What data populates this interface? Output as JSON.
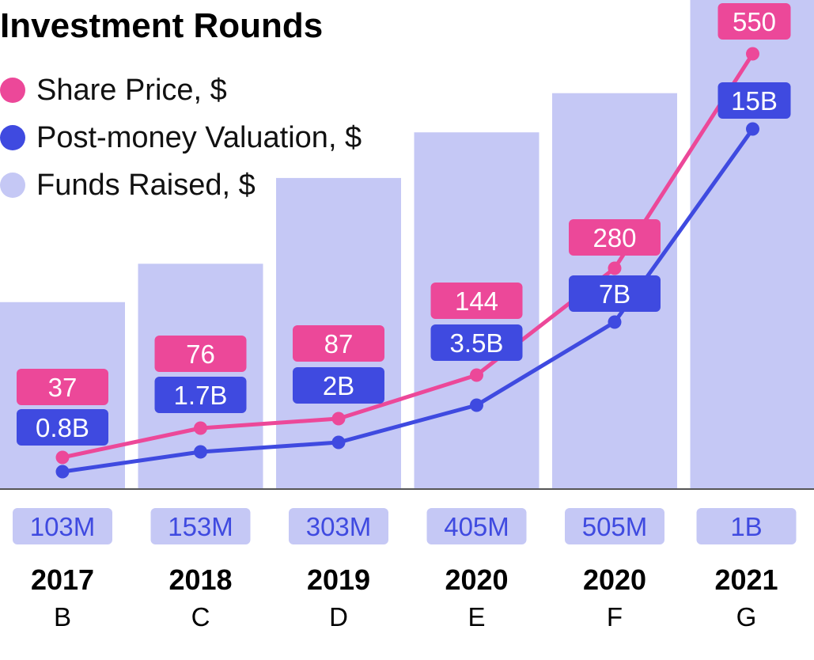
{
  "chart_data": {
    "type": "bar",
    "title": "Investment Rounds",
    "categories": [
      {
        "year": "2017",
        "round": "B"
      },
      {
        "year": "2018",
        "round": "C"
      },
      {
        "year": "2019",
        "round": "D"
      },
      {
        "year": "2020",
        "round": "E"
      },
      {
        "year": "2020",
        "round": "F"
      },
      {
        "year": "2021",
        "round": "G"
      }
    ],
    "series": [
      {
        "name": "Share Price, $",
        "kind": "line",
        "color": "#ec4899",
        "values": [
          37,
          76,
          87,
          144,
          280,
          550
        ],
        "labels": [
          "37",
          "76",
          "87",
          "144",
          "280",
          "550"
        ]
      },
      {
        "name": "Post-money Valuation, $",
        "kind": "line",
        "color": "#3f4ae0",
        "values": [
          0.8,
          1.7,
          2,
          3.5,
          7,
          15
        ],
        "labels": [
          "0.8B",
          "1.7B",
          "2B",
          "3.5B",
          "7B",
          "15B"
        ]
      },
      {
        "name": "Funds Raised, $",
        "kind": "bar",
        "color": "#c5c8f5",
        "values": [
          103,
          153,
          303,
          405,
          505,
          1000
        ],
        "labels": [
          "103M",
          "153M",
          "303M",
          "405M",
          "505M",
          "1B"
        ]
      }
    ],
    "grid": false,
    "legend_position": "top-left"
  }
}
